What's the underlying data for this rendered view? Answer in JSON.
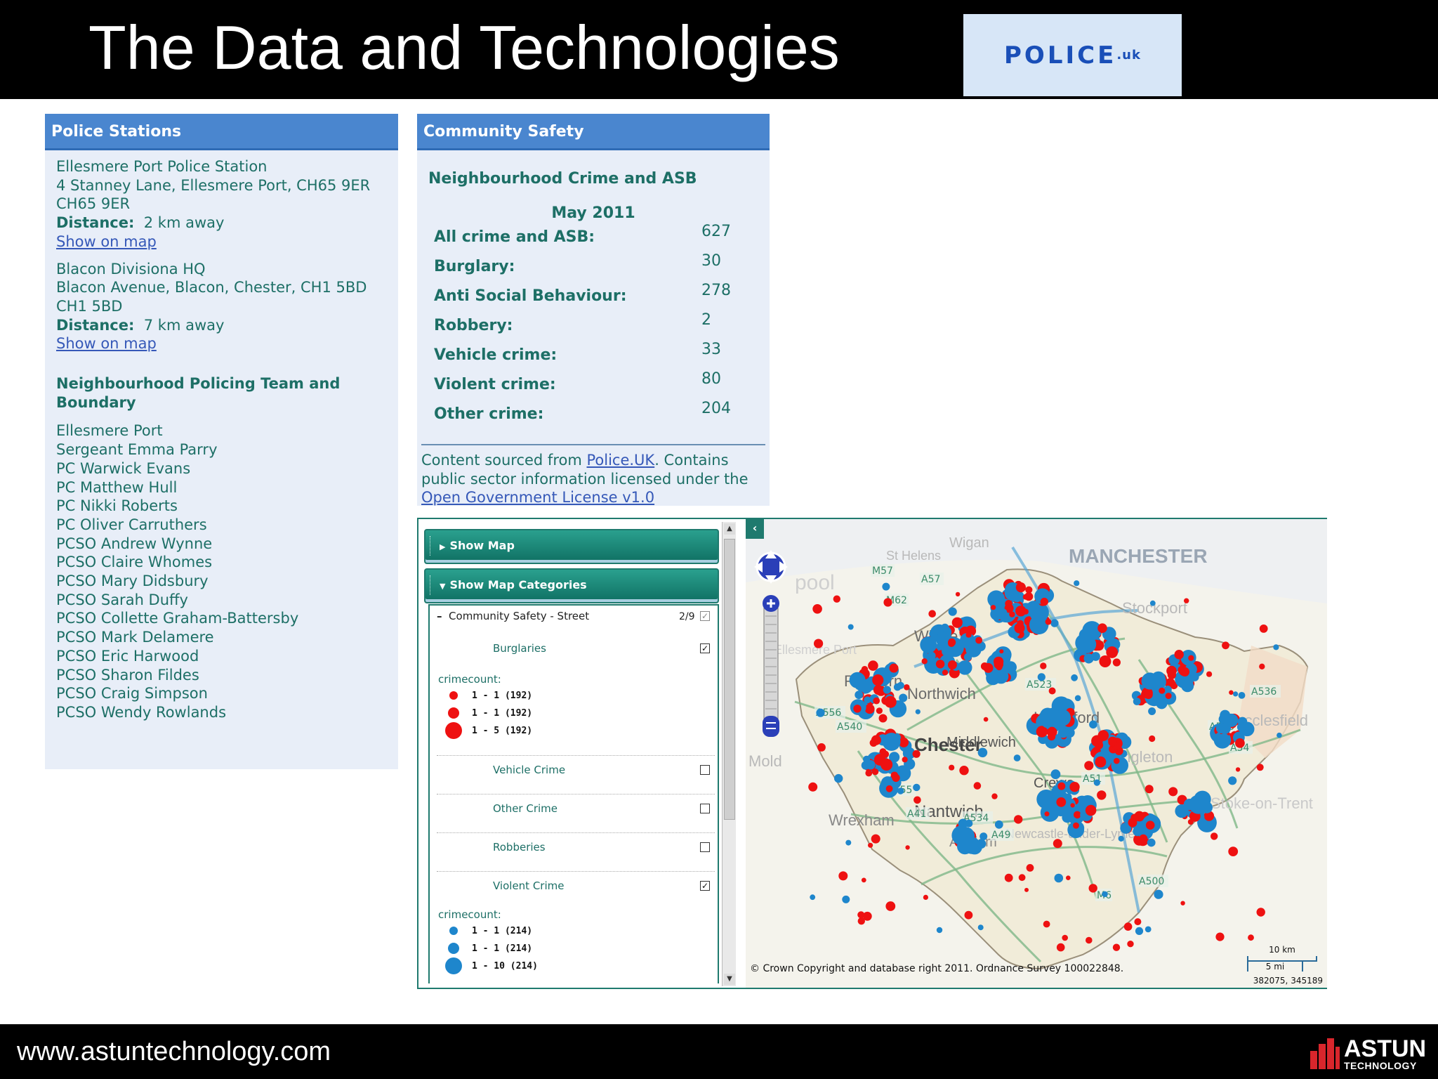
{
  "slide": {
    "title": "The Data and Technologies",
    "logo_text": "POLICE",
    "logo_suffix": ".uk",
    "footer_url": "www.astuntechnology.com",
    "footer_logo": "ASTUN",
    "footer_logo_sub": "TECHNOLOGY"
  },
  "stations": {
    "header": "Police Stations",
    "items": [
      {
        "name": "Ellesmere Port Police Station",
        "address": "4 Stanney Lane, Ellesmere Port, CH65 9ER",
        "postcode": "CH65 9ER",
        "distance_label": "Distance:",
        "distance": "2 km away",
        "link": "Show on map"
      },
      {
        "name": "Blacon Divisiona HQ",
        "address": "Blacon Avenue, Blacon, Chester, CH1 5BD",
        "postcode": "CH1 5BD",
        "distance_label": "Distance:",
        "distance": "7 km away",
        "link": "Show on map"
      }
    ],
    "team_title": "Neighbourhood Policing Team and Boundary",
    "team_area": "Ellesmere Port",
    "team_members": [
      "Sergeant Emma Parry",
      "PC Warwick Evans",
      "PC Matthew Hull",
      "PC Nikki Roberts",
      "PC Oliver Carruthers",
      "PCSO Andrew Wynne",
      "PCSO Claire Whomes",
      "PCSO Mary Didsbury",
      "PCSO Sarah Duffy",
      "PCSO Collette Graham-Battersby",
      "PCSO Mark Delamere",
      "PCSO Eric Harwood",
      "PCSO Sharon Fildes",
      "PCSO Craig Simpson",
      "PCSO Wendy Rowlands"
    ]
  },
  "community": {
    "header": "Community Safety",
    "subtitle": "Neighbourhood Crime and ASB",
    "month": "May 2011",
    "rows": [
      {
        "label": "All crime and ASB:",
        "value": "627"
      },
      {
        "label": "Burglary:",
        "value": "30"
      },
      {
        "label": "Anti Social Behaviour:",
        "value": "278"
      },
      {
        "label": "Robbery:",
        "value": "2"
      },
      {
        "label": "Vehicle crime:",
        "value": "33"
      },
      {
        "label": "Violent crime:",
        "value": "80"
      },
      {
        "label": "Other crime:",
        "value": "204"
      }
    ],
    "source_prefix": "Content sourced from ",
    "source_link": "Police.UK",
    "source_mid": ". Contains public sector information licensed under the ",
    "license_link": "Open Government License v1.0"
  },
  "map_legend": {
    "show_map": "Show Map",
    "show_categories": "Show Map Categories",
    "category_group": "Community Safety - Street",
    "category_count": "2/9",
    "crimecount_label": "crimecount:",
    "items": [
      {
        "label": "Burglaries",
        "checked": true
      },
      {
        "label": "Vehicle Crime",
        "checked": false
      },
      {
        "label": "Other Crime",
        "checked": false
      },
      {
        "label": "Robberies",
        "checked": false
      },
      {
        "label": "Violent Crime",
        "checked": true
      }
    ],
    "burglary_legend": [
      "1 - 1 (192)",
      "1 - 1 (192)",
      "1 - 5 (192)"
    ],
    "violent_legend": [
      "1 - 1 (214)",
      "1 - 1 (214)",
      "1 - 10 (214)"
    ],
    "colors": {
      "burglary": "#ee1111",
      "violent": "#1e86cc",
      "accent": "#1f7a6e"
    }
  },
  "map": {
    "copyright": "© Crown Copyright and database right 2011. Ordnance Survey 100022848.",
    "coords": "382075, 345189",
    "scale_km": "10 km",
    "scale_mi": "5 mi",
    "places": [
      "MANCHESTER",
      "Wigan",
      "St Helens",
      "Runcorn",
      "Widnes",
      "Northwich",
      "Knutsford",
      "Stockport",
      "Macclesfield",
      "Chester",
      "Middlewich",
      "Congleton",
      "Mold",
      "Nantwich",
      "Crewe",
      "Wrexham",
      "Audlem",
      "Newcastle-under-Lyme",
      "Stoke-on-Trent",
      "Ellesmere Port",
      "pool"
    ],
    "roads": [
      "M57",
      "A57",
      "M62",
      "M56",
      "A55",
      "A41",
      "A534",
      "A49",
      "A51",
      "A530",
      "A54",
      "A536",
      "A523",
      "A556",
      "A540",
      "M6",
      "A500"
    ]
  }
}
